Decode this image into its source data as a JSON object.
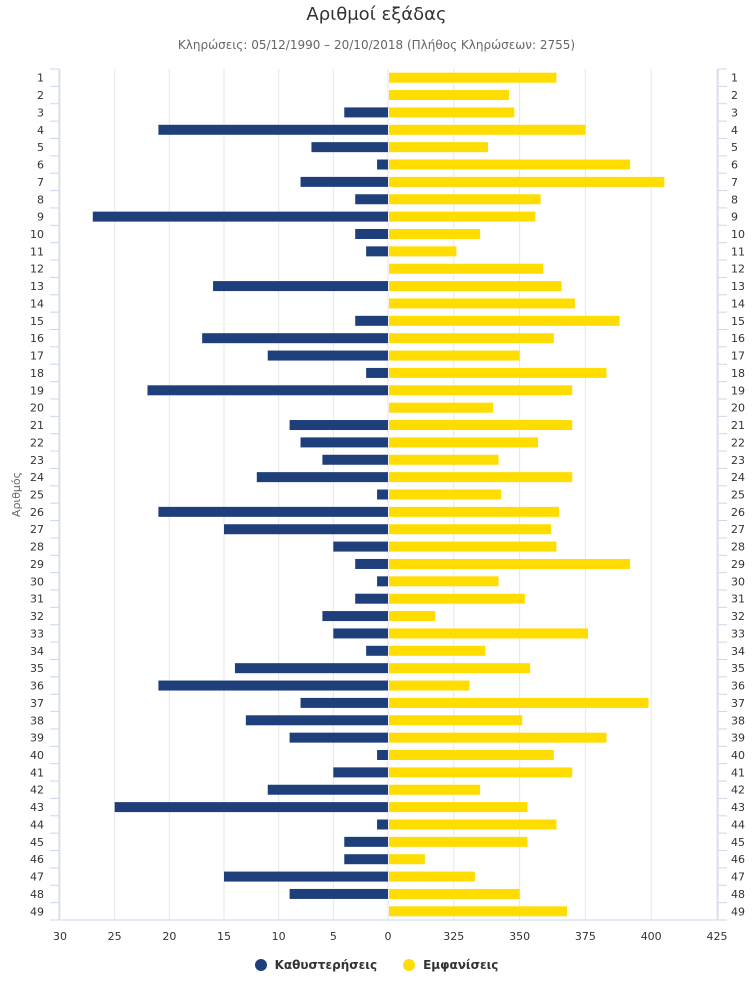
{
  "chart_data": {
    "type": "bar",
    "orientation": "horizontal",
    "title": "Αριθμοί εξάδας",
    "subtitle": "Κληρώσεις: 05/12/1990 – 20/10/2018 (Πλήθος Κληρώσεων: 2755)",
    "ylabel": "Αριθμός",
    "categories": [
      "1",
      "2",
      "3",
      "4",
      "5",
      "6",
      "7",
      "8",
      "9",
      "10",
      "11",
      "12",
      "13",
      "14",
      "15",
      "16",
      "17",
      "18",
      "19",
      "20",
      "21",
      "22",
      "23",
      "24",
      "25",
      "26",
      "27",
      "28",
      "29",
      "30",
      "31",
      "32",
      "33",
      "34",
      "35",
      "36",
      "37",
      "38",
      "39",
      "40",
      "41",
      "42",
      "43",
      "44",
      "45",
      "46",
      "47",
      "48",
      "49"
    ],
    "left_axis": {
      "reversed": true,
      "range": [
        0,
        30
      ],
      "ticks": [
        "30",
        "25",
        "20",
        "15",
        "10",
        "5",
        "0"
      ]
    },
    "right_axis": {
      "range": [
        300,
        425
      ],
      "ticks": [
        "325",
        "350",
        "375",
        "400",
        "425"
      ]
    },
    "grid": true,
    "legend_position": "bottom",
    "series": [
      {
        "name": "Καθυστερήσεις",
        "color": "#1f3f7a",
        "values": [
          0,
          0,
          4,
          21,
          7,
          1,
          8,
          3,
          27,
          3,
          2,
          0,
          16,
          0,
          3,
          17,
          11,
          2,
          22,
          0,
          9,
          8,
          6,
          12,
          1,
          21,
          15,
          5,
          3,
          1,
          3,
          6,
          5,
          2,
          14,
          21,
          8,
          13,
          9,
          1,
          5,
          11,
          25,
          1,
          4,
          4,
          15,
          9,
          0
        ]
      },
      {
        "name": "Εμφανίσεις",
        "color": "#ffdd00",
        "values": [
          364,
          346,
          348,
          375,
          338,
          392,
          405,
          358,
          356,
          335,
          326,
          359,
          366,
          371,
          388,
          363,
          350,
          383,
          370,
          340,
          370,
          357,
          342,
          370,
          343,
          365,
          362,
          364,
          392,
          342,
          352,
          318,
          376,
          337,
          354,
          331,
          399,
          351,
          383,
          363,
          370,
          335,
          353,
          364,
          353,
          314,
          333,
          350,
          368
        ]
      }
    ]
  }
}
